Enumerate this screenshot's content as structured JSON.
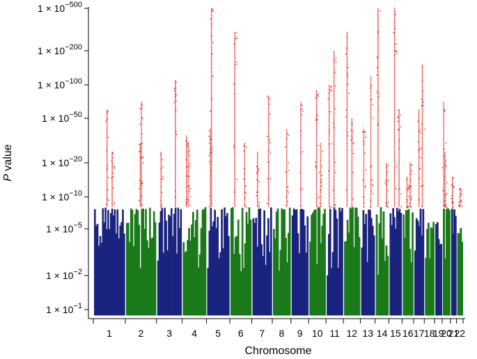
{
  "chart_data": {
    "type": "scatter",
    "subtype": "manhattan",
    "title": "",
    "xlabel": "Chromosome",
    "ylabel_italic": "P",
    "ylabel_rest": " value",
    "y_scale": "-log10",
    "y_ticks": [
      {
        "neglog10": 1,
        "base": "1 × 10",
        "exp": "−1"
      },
      {
        "neglog10": 2,
        "base": "1 × 10",
        "exp": "−2"
      },
      {
        "neglog10": 5,
        "base": "1 × 10",
        "exp": "−5"
      },
      {
        "neglog10": 10,
        "base": "1 × 10",
        "exp": "−10"
      },
      {
        "neglog10": 20,
        "base": "1 × 10",
        "exp": "−20"
      },
      {
        "neglog10": 50,
        "base": "1 × 10",
        "exp": "−50"
      },
      {
        "neglog10": 100,
        "base": "1 × 10",
        "exp": "−100"
      },
      {
        "neglog10": 200,
        "base": "1 × 10",
        "exp": "−200"
      },
      {
        "neglog10": 500,
        "base": "1 × 10",
        "exp": "−500"
      }
    ],
    "significance_threshold_neglog10": 8,
    "chromosomes": [
      "1",
      "2",
      "3",
      "4",
      "5",
      "6",
      "7",
      "8",
      "9",
      "10",
      "11",
      "12",
      "13",
      "14",
      "15",
      "16",
      "17",
      "18",
      "19",
      "20",
      "21",
      "22"
    ],
    "colors": {
      "blue": "#1a237e",
      "green": "#1a7a1a",
      "red": "#e8231f",
      "axis": "#000000"
    },
    "series": [
      {
        "chromosome": "1",
        "color": "blue",
        "max_neglog10": 8,
        "segments": 3
      },
      {
        "chromosome": "2",
        "color": "green",
        "max_neglog10": 8,
        "segments": 2
      },
      {
        "chromosome": "3",
        "color": "blue",
        "max_neglog10": 8,
        "segments": 1
      },
      {
        "chromosome": "4",
        "color": "green",
        "max_neglog10": 8,
        "segments": 1
      },
      {
        "chromosome": "5",
        "color": "blue",
        "max_neglog10": 8,
        "segments": 1
      },
      {
        "chromosome": "6",
        "color": "green",
        "max_neglog10": 8,
        "segments": 1
      },
      {
        "chromosome": "7",
        "color": "blue",
        "max_neglog10": 8,
        "segments": 1
      },
      {
        "chromosome": "8",
        "color": "green",
        "max_neglog10": 8,
        "segments": 1
      },
      {
        "chromosome": "9",
        "color": "blue",
        "max_neglog10": 8,
        "segments": 2
      },
      {
        "chromosome": "10",
        "color": "green",
        "max_neglog10": 8,
        "segments": 1
      },
      {
        "chromosome": "11",
        "color": "blue",
        "max_neglog10": 8,
        "segments": 1
      },
      {
        "chromosome": "12",
        "color": "green",
        "max_neglog10": 8,
        "segments": 1
      },
      {
        "chromosome": "13",
        "color": "blue",
        "max_neglog10": 8,
        "segments": 1
      },
      {
        "chromosome": "14",
        "color": "green",
        "max_neglog10": 8,
        "segments": 1
      },
      {
        "chromosome": "15",
        "color": "blue",
        "max_neglog10": 8,
        "segments": 1
      },
      {
        "chromosome": "16",
        "color": "green",
        "max_neglog10": 8,
        "segments": 2
      },
      {
        "chromosome": "17",
        "color": "blue",
        "max_neglog10": 8,
        "segments": 1
      },
      {
        "chromosome": "18",
        "color": "green",
        "max_neglog10": 6,
        "segments": 1
      },
      {
        "chromosome": "19",
        "color": "blue",
        "max_neglog10": 6,
        "segments": 1
      },
      {
        "chromosome": "20",
        "color": "green",
        "max_neglog10": 8,
        "segments": 1
      },
      {
        "chromosome": "21",
        "color": "blue",
        "max_neglog10": 8,
        "segments": 1
      },
      {
        "chromosome": "22",
        "color": "green",
        "max_neglog10": 7,
        "segments": 1
      }
    ],
    "peaks": [
      {
        "chromosome": "1",
        "max_neglog10": 60
      },
      {
        "chromosome": "1",
        "max_neglog10": 25
      },
      {
        "chromosome": "2",
        "max_neglog10": 70
      },
      {
        "chromosome": "2",
        "max_neglog10": 30
      },
      {
        "chromosome": "3",
        "max_neglog10": 110
      },
      {
        "chromosome": "3",
        "max_neglog10": 25
      },
      {
        "chromosome": "4",
        "max_neglog10": 35
      },
      {
        "chromosome": "4",
        "max_neglog10": 30
      },
      {
        "chromosome": "5",
        "max_neglog10": 500
      },
      {
        "chromosome": "5",
        "max_neglog10": 40
      },
      {
        "chromosome": "6",
        "max_neglog10": 300
      },
      {
        "chromosome": "6",
        "max_neglog10": 30
      },
      {
        "chromosome": "7",
        "max_neglog10": 80
      },
      {
        "chromosome": "7",
        "max_neglog10": 25
      },
      {
        "chromosome": "8",
        "max_neglog10": 40
      },
      {
        "chromosome": "9",
        "max_neglog10": 70
      },
      {
        "chromosome": "10",
        "max_neglog10": 90
      },
      {
        "chromosome": "10",
        "max_neglog10": 30
      },
      {
        "chromosome": "11",
        "max_neglog10": 200
      },
      {
        "chromosome": "11",
        "max_neglog10": 100
      },
      {
        "chromosome": "12",
        "max_neglog10": 300
      },
      {
        "chromosome": "12",
        "max_neglog10": 50
      },
      {
        "chromosome": "13",
        "max_neglog10": 120
      },
      {
        "chromosome": "13",
        "max_neglog10": 40
      },
      {
        "chromosome": "14",
        "max_neglog10": 500
      },
      {
        "chromosome": "14",
        "max_neglog10": 20
      },
      {
        "chromosome": "15",
        "max_neglog10": 500
      },
      {
        "chromosome": "15",
        "max_neglog10": 60
      },
      {
        "chromosome": "16",
        "max_neglog10": 20
      },
      {
        "chromosome": "16",
        "max_neglog10": 15
      },
      {
        "chromosome": "17",
        "max_neglog10": 150
      },
      {
        "chromosome": "17",
        "max_neglog10": 60
      },
      {
        "chromosome": "18",
        "max_neglog10": 6
      },
      {
        "chromosome": "19",
        "max_neglog10": 6
      },
      {
        "chromosome": "20",
        "max_neglog10": 70
      },
      {
        "chromosome": "20",
        "max_neglog10": 25
      },
      {
        "chromosome": "21",
        "max_neglog10": 15
      },
      {
        "chromosome": "22",
        "max_neglog10": 12
      }
    ]
  }
}
